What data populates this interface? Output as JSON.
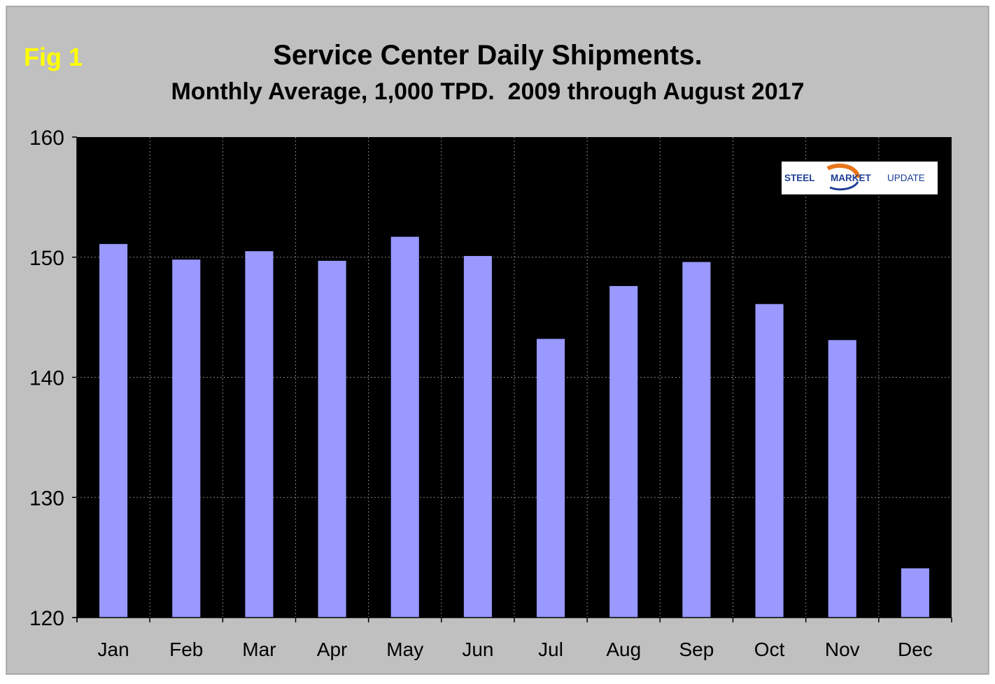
{
  "fig_label": "Fig 1",
  "logo": {
    "word1": "STEEL",
    "word2": "MARKET",
    "word3": "UPDATE"
  },
  "colors": {
    "background": "#c0c0c0",
    "plot_area": "#000000",
    "bar": "#9999ff",
    "fig_label": "#ffff00",
    "text": "#000000",
    "gridline": "#808080",
    "logo_blue": "#1c3f94",
    "logo_orange": "#e8751a"
  },
  "chart_data": {
    "type": "bar",
    "title": "Service Center Daily Shipments.",
    "subtitle": "Monthly Average, 1,000 TPD.  2009 through August 2017",
    "xlabel": "",
    "ylabel": "",
    "categories": [
      "Jan",
      "Feb",
      "Mar",
      "Apr",
      "May",
      "Jun",
      "Jul",
      "Aug",
      "Sep",
      "Oct",
      "Nov",
      "Dec"
    ],
    "values": [
      151.1,
      149.8,
      150.5,
      149.7,
      151.7,
      150.1,
      143.2,
      147.6,
      149.6,
      146.1,
      143.1,
      124.1
    ],
    "ylim": [
      120,
      160
    ],
    "yticks": [
      120,
      130,
      140,
      150,
      160
    ],
    "ytick_labels": [
      "120",
      "130",
      "140",
      "150",
      "160"
    ],
    "grid": true,
    "legend": "none"
  }
}
